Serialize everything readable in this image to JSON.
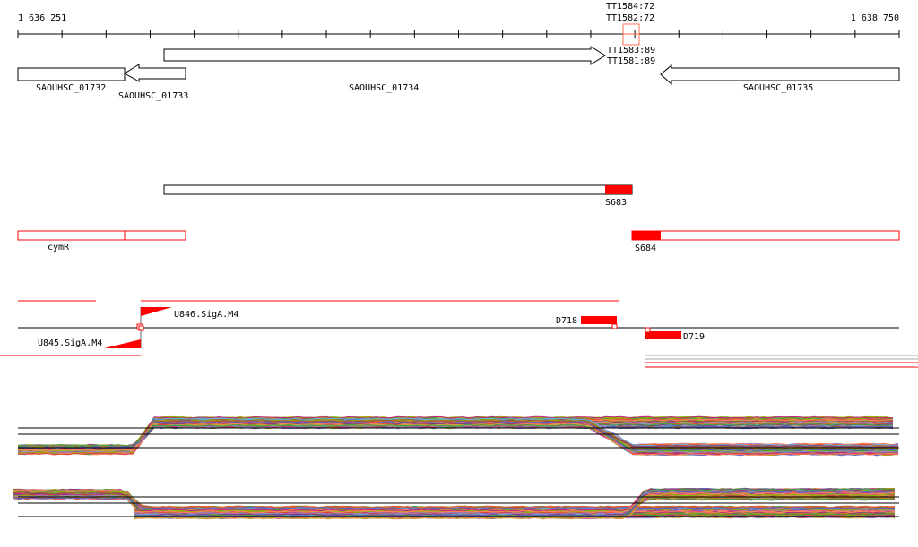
{
  "ruler": {
    "start_label": "1 636 251",
    "end_label": "1 638 750"
  },
  "tss_labels": {
    "top": [
      "TT1584:72",
      "TT1582:72"
    ],
    "bottom": [
      "TT1583:89",
      "TT1581:89"
    ]
  },
  "genes": [
    {
      "name": "SAOUHSC_01732",
      "strand": "none"
    },
    {
      "name": "SAOUHSC_01733",
      "strand": "-"
    },
    {
      "name": "SAOUHSC_01734",
      "strand": "+"
    },
    {
      "name": "SAOUHSC_01735",
      "strand": "-"
    }
  ],
  "transcripts": {
    "s683": "S683",
    "cymr": "cymR",
    "s684": "S684"
  },
  "promoters": {
    "u846": "U846.SigA.M4",
    "u845": "U845.SigA.M4",
    "d718": "D718",
    "d719": "D719"
  },
  "colors": {
    "feature": "#ff0000",
    "highlight": "#ff6040",
    "axis": "#000000"
  }
}
